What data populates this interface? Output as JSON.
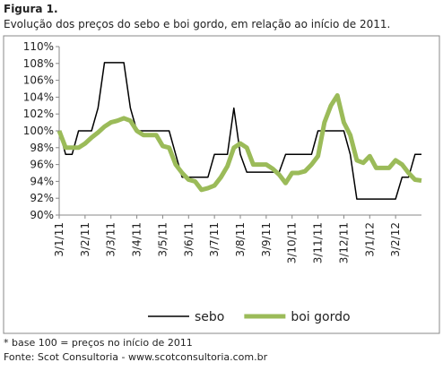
{
  "figure": {
    "label": "Figura 1.",
    "caption": "Evolução dos preços do sebo e boi gordo, em relação ao início de 2011."
  },
  "footnotes": [
    "* base 100 = preços no início de 2011",
    "Fonte: Scot Consultoria - www.scotconsultoria.com.br"
  ],
  "chart_data": {
    "type": "line",
    "categories": [
      "3/1/11",
      null,
      null,
      null,
      "3/2/11",
      null,
      null,
      null,
      "3/3/11",
      null,
      null,
      null,
      "3/4/11",
      null,
      null,
      null,
      "3/5/11",
      null,
      null,
      null,
      "3/6/11",
      null,
      null,
      null,
      "3/7/11",
      null,
      null,
      null,
      "3/8/11",
      null,
      null,
      null,
      "3/9/11",
      null,
      null,
      null,
      "3/10/11",
      null,
      null,
      null,
      "3/11/11",
      null,
      null,
      null,
      "3/12/11",
      null,
      null,
      null,
      "3/1/12",
      null,
      null,
      null,
      "3/2/12",
      null,
      null,
      null,
      null
    ],
    "series": [
      {
        "name": "sebo",
        "color": "#000000",
        "width": 1.5,
        "values": [
          100,
          97.2,
          97.2,
          100,
          100,
          100,
          102.7,
          108.1,
          108.1,
          108.1,
          108.1,
          102.7,
          100,
          100,
          100,
          100,
          100,
          100,
          97.2,
          94.5,
          94.5,
          94.5,
          94.5,
          94.5,
          97.2,
          97.2,
          97.2,
          102.7,
          97.2,
          95.1,
          95.1,
          95.1,
          95.1,
          95.1,
          95.1,
          97.2,
          97.2,
          97.2,
          97.2,
          97.2,
          100,
          100,
          100,
          100,
          100,
          97.2,
          91.9,
          91.9,
          91.9,
          91.9,
          91.9,
          91.9,
          91.9,
          94.5,
          94.5,
          97.2,
          97.2
        ]
      },
      {
        "name": "boi gordo",
        "color": "#9bbb59",
        "width": 5,
        "values": [
          100,
          98,
          98,
          98,
          98.5,
          99.2,
          99.8,
          100.5,
          101,
          101.2,
          101.5,
          101.2,
          100,
          99.5,
          99.5,
          99.5,
          98.2,
          98,
          96,
          95,
          94.2,
          94,
          93,
          93.2,
          93.5,
          94.5,
          95.8,
          98,
          98.5,
          98,
          96,
          96,
          96,
          95.5,
          94.8,
          93.8,
          95,
          95,
          95.2,
          96,
          97,
          101,
          103,
          104.2,
          101,
          99.5,
          96.5,
          96.2,
          97,
          95.6,
          95.6,
          95.6,
          96.5,
          96,
          95,
          94.2,
          94.1
        ]
      }
    ],
    "ylim": [
      90,
      110
    ],
    "yticks": [
      {
        "value": 90,
        "label": "90%"
      },
      {
        "value": 92,
        "label": "92%"
      },
      {
        "value": 94,
        "label": "94%"
      },
      {
        "value": 96,
        "label": "96%"
      },
      {
        "value": 98,
        "label": "98%"
      },
      {
        "value": 100,
        "label": "100%"
      },
      {
        "value": 102,
        "label": "102%"
      },
      {
        "value": 104,
        "label": "104%"
      },
      {
        "value": 106,
        "label": "106%"
      },
      {
        "value": 108,
        "label": "108%"
      },
      {
        "value": 110,
        "label": "110%"
      }
    ],
    "grid": false,
    "legend": "bottom"
  }
}
